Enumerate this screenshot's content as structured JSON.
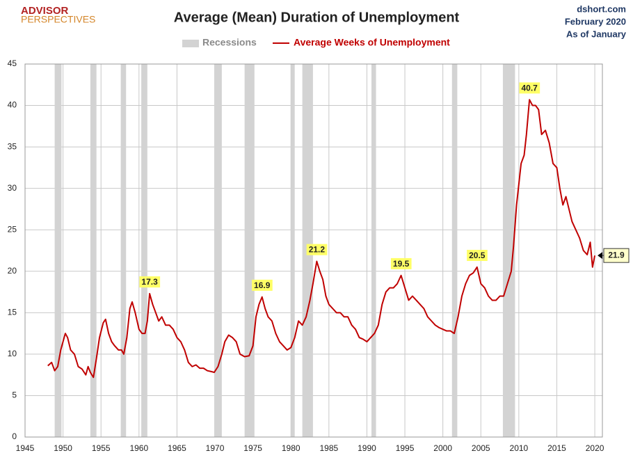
{
  "chart_data": {
    "type": "line",
    "title": "Average (Mean) Duration of Unemployment",
    "logo": [
      "ADVISOR",
      "PERSPECTIVES"
    ],
    "source_notes": [
      "dshort.com",
      "February 2020",
      "As of January"
    ],
    "recession_label": "Recessions",
    "recession_color": "#d3d3d3",
    "recessions": [
      [
        1948.9,
        1949.8
      ],
      [
        1953.6,
        1954.4
      ],
      [
        1957.6,
        1958.3
      ],
      [
        1960.3,
        1961.1
      ],
      [
        1969.9,
        1970.9
      ],
      [
        1973.9,
        1975.2
      ],
      [
        1980.0,
        1980.5
      ],
      [
        1981.5,
        1982.9
      ],
      [
        1990.6,
        1991.2
      ],
      [
        2001.2,
        2001.9
      ],
      [
        2007.9,
        2009.5
      ]
    ],
    "series": [
      {
        "name": "Average Weeks of Unemployment",
        "color": "#c00000",
        "x": [
          1948.0,
          1948.5,
          1948.9,
          1949.3,
          1949.7,
          1950.0,
          1950.3,
          1950.6,
          1951.0,
          1951.5,
          1952.0,
          1952.5,
          1953.0,
          1953.3,
          1953.6,
          1954.0,
          1954.4,
          1954.8,
          1955.3,
          1955.6,
          1956.0,
          1956.4,
          1956.8,
          1957.3,
          1957.7,
          1958.0,
          1958.4,
          1958.8,
          1959.1,
          1959.5,
          1960.0,
          1960.4,
          1960.8,
          1961.1,
          1961.4,
          1961.8,
          1962.2,
          1962.6,
          1963.0,
          1963.5,
          1964.0,
          1964.5,
          1965.0,
          1965.5,
          1966.0,
          1966.5,
          1967.0,
          1967.5,
          1968.0,
          1968.5,
          1969.0,
          1969.5,
          1969.9,
          1970.4,
          1970.9,
          1971.3,
          1971.8,
          1972.3,
          1972.8,
          1973.3,
          1973.9,
          1974.5,
          1975.0,
          1975.4,
          1975.8,
          1976.2,
          1976.6,
          1977.0,
          1977.5,
          1978.0,
          1978.5,
          1979.0,
          1979.5,
          1980.0,
          1980.5,
          1981.0,
          1981.5,
          1982.0,
          1982.5,
          1982.9,
          1983.4,
          1983.8,
          1984.2,
          1984.6,
          1985.0,
          1985.5,
          1986.0,
          1986.5,
          1987.0,
          1987.5,
          1988.0,
          1988.5,
          1989.0,
          1989.5,
          1990.0,
          1990.5,
          1991.0,
          1991.5,
          1992.0,
          1992.5,
          1993.0,
          1993.5,
          1994.0,
          1994.5,
          1995.0,
          1995.5,
          1996.0,
          1996.5,
          1997.0,
          1997.5,
          1998.0,
          1998.5,
          1999.0,
          1999.5,
          2000.0,
          2000.5,
          2001.0,
          2001.5,
          2002.0,
          2002.5,
          2003.0,
          2003.5,
          2004.0,
          2004.5,
          2005.0,
          2005.5,
          2006.0,
          2006.5,
          2007.0,
          2007.5,
          2008.0,
          2008.5,
          2009.0,
          2009.3,
          2009.7,
          2010.0,
          2010.3,
          2010.7,
          2011.0,
          2011.4,
          2011.8,
          2012.2,
          2012.6,
          2013.0,
          2013.5,
          2014.0,
          2014.5,
          2015.0,
          2015.4,
          2015.8,
          2016.2,
          2016.6,
          2017.0,
          2017.5,
          2018.0,
          2018.5,
          2019.0,
          2019.4,
          2019.7,
          2020.0
        ],
        "values": [
          8.6,
          9.0,
          8.0,
          8.5,
          10.5,
          11.5,
          12.5,
          12.0,
          10.5,
          10.0,
          8.5,
          8.2,
          7.5,
          8.5,
          7.8,
          7.2,
          9.5,
          12.0,
          13.8,
          14.2,
          12.5,
          11.5,
          11.0,
          10.5,
          10.5,
          10.0,
          12.0,
          15.5,
          16.3,
          15.0,
          13.0,
          12.5,
          12.5,
          14.0,
          17.3,
          16.0,
          15.0,
          14.0,
          14.5,
          13.5,
          13.5,
          13.0,
          12.0,
          11.5,
          10.5,
          9.0,
          8.5,
          8.7,
          8.3,
          8.3,
          8.0,
          7.9,
          7.8,
          8.5,
          10.0,
          11.5,
          12.3,
          12.0,
          11.5,
          10.0,
          9.7,
          9.8,
          11.0,
          14.5,
          16.0,
          16.9,
          15.5,
          14.5,
          14.0,
          12.5,
          11.5,
          11.0,
          10.5,
          10.8,
          12.0,
          14.0,
          13.5,
          14.5,
          16.5,
          18.5,
          21.2,
          20.0,
          19.0,
          17.0,
          16.0,
          15.5,
          15.0,
          15.0,
          14.5,
          14.5,
          13.5,
          13.0,
          12.0,
          11.8,
          11.5,
          12.0,
          12.5,
          13.5,
          16.0,
          17.5,
          18.0,
          18.0,
          18.5,
          19.5,
          18.0,
          16.5,
          17.0,
          16.5,
          16.0,
          15.5,
          14.5,
          14.0,
          13.5,
          13.2,
          13.0,
          12.8,
          12.8,
          12.5,
          14.5,
          17.0,
          18.5,
          19.5,
          19.8,
          20.5,
          18.5,
          18.0,
          17.0,
          16.5,
          16.5,
          17.0,
          17.0,
          18.5,
          20.0,
          23.0,
          28.0,
          30.5,
          33.0,
          34.0,
          36.5,
          40.7,
          40.0,
          40.0,
          39.5,
          36.5,
          37.0,
          35.5,
          33.0,
          32.5,
          30.0,
          28.0,
          29.0,
          27.5,
          26.0,
          25.0,
          24.0,
          22.5,
          22.0,
          23.5,
          20.5,
          21.9
        ]
      }
    ],
    "annotations": [
      {
        "x": 1961.4,
        "y": 17.3
      },
      {
        "x": 1976.2,
        "y": 16.9
      },
      {
        "x": 1983.4,
        "y": 21.2
      },
      {
        "x": 1994.5,
        "y": 19.5
      },
      {
        "x": 2004.5,
        "y": 20.5
      },
      {
        "x": 2011.4,
        "y": 40.7
      }
    ],
    "last_value": {
      "x": 2020.0,
      "y": 21.9
    },
    "xlim": [
      1945,
      2021
    ],
    "ylim": [
      0,
      45
    ],
    "xticks": [
      1945,
      1950,
      1955,
      1960,
      1965,
      1970,
      1975,
      1980,
      1985,
      1990,
      1995,
      2000,
      2005,
      2010,
      2015,
      2020
    ],
    "yticks": [
      0,
      5,
      10,
      15,
      20,
      25,
      30,
      35,
      40,
      45
    ],
    "grid": true
  }
}
